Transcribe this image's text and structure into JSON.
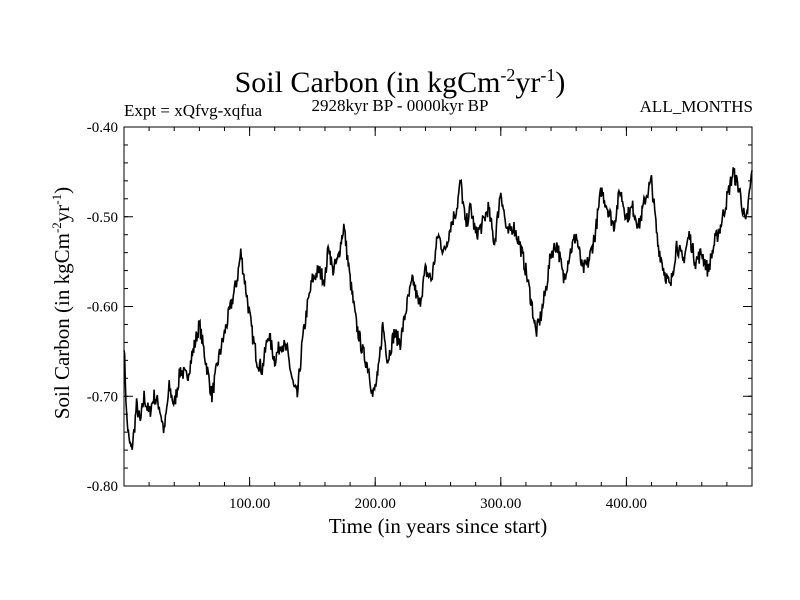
{
  "header": {
    "title_prefix": "Soil Carbon (in kgCm",
    "title_exp1": "-2",
    "title_mid": "yr",
    "title_exp2": "-1",
    "title_suffix": ")",
    "experiment": "Expt = xQfvg-xqfua",
    "period": "2928kyr BP - 0000kyr BP",
    "months": "ALL_MONTHS"
  },
  "axes": {
    "xlabel": "Time (in years since start)",
    "ylabel_prefix": "Soil Carbon (in kgCm",
    "ylabel_exp1": "-2",
    "ylabel_mid": "yr",
    "ylabel_exp2": "-1",
    "ylabel_suffix": ")"
  },
  "chart_data": {
    "type": "line",
    "title": "Soil Carbon (in kgCm-2yr-1)",
    "xlabel": "Time (in years since start)",
    "ylabel": "Soil Carbon (in kgCm-2yr-1)",
    "xlim": [
      0,
      500
    ],
    "ylim": [
      -0.8,
      -0.4
    ],
    "x_ticks": [
      100,
      200,
      300,
      400
    ],
    "x_tick_labels": [
      "100.00",
      "200.00",
      "300.00",
      "400.00"
    ],
    "y_ticks": [
      -0.8,
      -0.7,
      -0.6,
      -0.5,
      -0.4
    ],
    "y_tick_labels": [
      "-0.80",
      "-0.70",
      "-0.60",
      "-0.50",
      "-0.40"
    ],
    "series": [
      {
        "name": "Soil Carbon",
        "x": [
          0,
          2,
          4,
          6,
          8,
          10,
          13,
          16,
          20,
          24,
          28,
          32,
          36,
          40,
          45,
          50,
          55,
          60,
          65,
          70,
          75,
          80,
          85,
          90,
          93,
          95,
          98,
          102,
          106,
          110,
          115,
          120,
          125,
          130,
          135,
          138,
          142,
          146,
          150,
          155,
          160,
          163,
          166,
          170,
          175,
          180,
          185,
          190,
          195,
          198,
          202,
          206,
          210,
          215,
          220,
          225,
          230,
          235,
          240,
          245,
          250,
          255,
          260,
          265,
          268,
          272,
          276,
          280,
          285,
          290,
          295,
          300,
          305,
          310,
          315,
          320,
          325,
          328,
          332,
          336,
          340,
          345,
          350,
          355,
          360,
          365,
          370,
          375,
          380,
          385,
          390,
          395,
          400,
          405,
          410,
          415,
          420,
          425,
          430,
          435,
          440,
          445,
          450,
          455,
          460,
          465,
          470,
          475,
          480,
          485,
          490,
          495,
          500
        ],
        "values": [
          -0.64,
          -0.72,
          -0.75,
          -0.76,
          -0.74,
          -0.71,
          -0.73,
          -0.7,
          -0.72,
          -0.7,
          -0.71,
          -0.74,
          -0.69,
          -0.71,
          -0.67,
          -0.68,
          -0.65,
          -0.62,
          -0.66,
          -0.7,
          -0.66,
          -0.63,
          -0.6,
          -0.57,
          -0.54,
          -0.56,
          -0.59,
          -0.63,
          -0.66,
          -0.67,
          -0.63,
          -0.66,
          -0.64,
          -0.65,
          -0.69,
          -0.7,
          -0.64,
          -0.6,
          -0.57,
          -0.56,
          -0.57,
          -0.53,
          -0.56,
          -0.55,
          -0.51,
          -0.57,
          -0.62,
          -0.65,
          -0.67,
          -0.7,
          -0.68,
          -0.62,
          -0.66,
          -0.63,
          -0.64,
          -0.6,
          -0.57,
          -0.6,
          -0.56,
          -0.57,
          -0.52,
          -0.54,
          -0.51,
          -0.49,
          -0.46,
          -0.51,
          -0.49,
          -0.52,
          -0.51,
          -0.49,
          -0.53,
          -0.47,
          -0.52,
          -0.51,
          -0.53,
          -0.56,
          -0.6,
          -0.63,
          -0.61,
          -0.58,
          -0.54,
          -0.53,
          -0.57,
          -0.54,
          -0.52,
          -0.56,
          -0.55,
          -0.52,
          -0.47,
          -0.49,
          -0.51,
          -0.47,
          -0.5,
          -0.49,
          -0.51,
          -0.48,
          -0.46,
          -0.53,
          -0.56,
          -0.58,
          -0.53,
          -0.55,
          -0.52,
          -0.55,
          -0.54,
          -0.56,
          -0.53,
          -0.51,
          -0.48,
          -0.45,
          -0.47,
          -0.51,
          -0.45
        ]
      }
    ]
  }
}
